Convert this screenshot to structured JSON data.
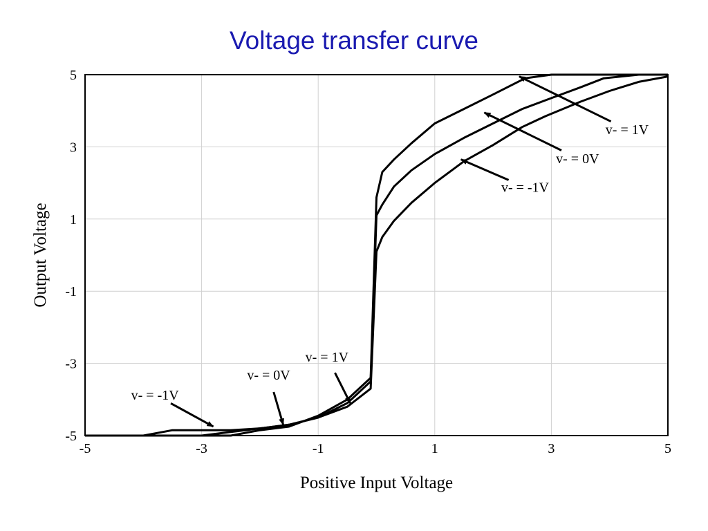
{
  "slide": {
    "title": "Voltage transfer curve"
  },
  "chart_data": {
    "type": "line",
    "title": "",
    "xlabel": "Positive Input Voltage",
    "ylabel": "Output Voltage",
    "xlim": [
      -5,
      5
    ],
    "ylim": [
      -5,
      5
    ],
    "xticks": [
      -5,
      -3,
      -1,
      1,
      3,
      5
    ],
    "yticks": [
      -5,
      -3,
      -1,
      1,
      3,
      5
    ],
    "xtick_labels": [
      "-5",
      "-3",
      "-1",
      "1",
      "3",
      "5"
    ],
    "ytick_labels": [
      "-5",
      "-3",
      "-1",
      "1",
      "3",
      "5"
    ],
    "grid": true,
    "line_color": "#000000",
    "series": [
      {
        "x": [
          -5,
          -4,
          -3.5,
          -3.0,
          -2.5,
          -2.0,
          -1.5,
          -1.0,
          -0.5,
          -0.1,
          0.0,
          0.1,
          0.3,
          0.6,
          1.0,
          1.5,
          2.0,
          2.5,
          2.9,
          3.5,
          4.0,
          4.5,
          5.0
        ],
        "y": [
          -5,
          -5,
          -4.85,
          -4.85,
          -4.85,
          -4.8,
          -4.7,
          -4.5,
          -4.2,
          -3.7,
          0.1,
          0.5,
          0.95,
          1.45,
          2.0,
          2.6,
          3.05,
          3.55,
          3.85,
          4.25,
          4.55,
          4.8,
          4.95
        ]
      },
      {
        "x": [
          -5,
          -3,
          -2.5,
          -2.0,
          -1.5,
          -1.0,
          -0.5,
          -0.1,
          0.0,
          0.1,
          0.3,
          0.6,
          1.0,
          1.5,
          2.0,
          2.5,
          3.0,
          3.5,
          3.9,
          4.5,
          5.0
        ],
        "y": [
          -5,
          -5,
          -4.9,
          -4.8,
          -4.7,
          -4.5,
          -4.1,
          -3.5,
          1.1,
          1.4,
          1.9,
          2.35,
          2.8,
          3.25,
          3.65,
          4.05,
          4.35,
          4.65,
          4.9,
          5.0,
          5.0
        ]
      },
      {
        "x": [
          -5,
          -2.5,
          -2.0,
          -1.5,
          -1.0,
          -0.5,
          -0.1,
          0.0,
          0.1,
          0.3,
          0.6,
          1.0,
          1.5,
          2.0,
          2.55,
          3.0,
          4.0,
          5.0
        ],
        "y": [
          -5,
          -5,
          -4.85,
          -4.75,
          -4.45,
          -4.0,
          -3.4,
          1.6,
          2.3,
          2.65,
          3.1,
          3.65,
          4.05,
          4.45,
          4.9,
          5.0,
          5.0,
          5.0
        ]
      }
    ],
    "annotations": [
      {
        "text": "v- = 1V",
        "x": 4.3,
        "y": 3.35,
        "ax": 2.45,
        "ay": 4.95
      },
      {
        "text": "v- = 0V",
        "x": 3.45,
        "y": 2.55,
        "ax": 1.85,
        "ay": 3.95
      },
      {
        "text": "v- = -1V",
        "x": 2.55,
        "y": 1.75,
        "ax": 1.45,
        "ay": 2.65
      },
      {
        "text": "v- = 1V",
        "x": -0.85,
        "y": -2.95,
        "ax": -0.45,
        "ay": -4.1
      },
      {
        "text": "v- = 0V",
        "x": -1.85,
        "y": -3.45,
        "ax": -1.6,
        "ay": -4.7
      },
      {
        "text": "v- = -1V",
        "x": -3.8,
        "y": -4.0,
        "ax": -2.8,
        "ay": -4.75
      }
    ]
  }
}
